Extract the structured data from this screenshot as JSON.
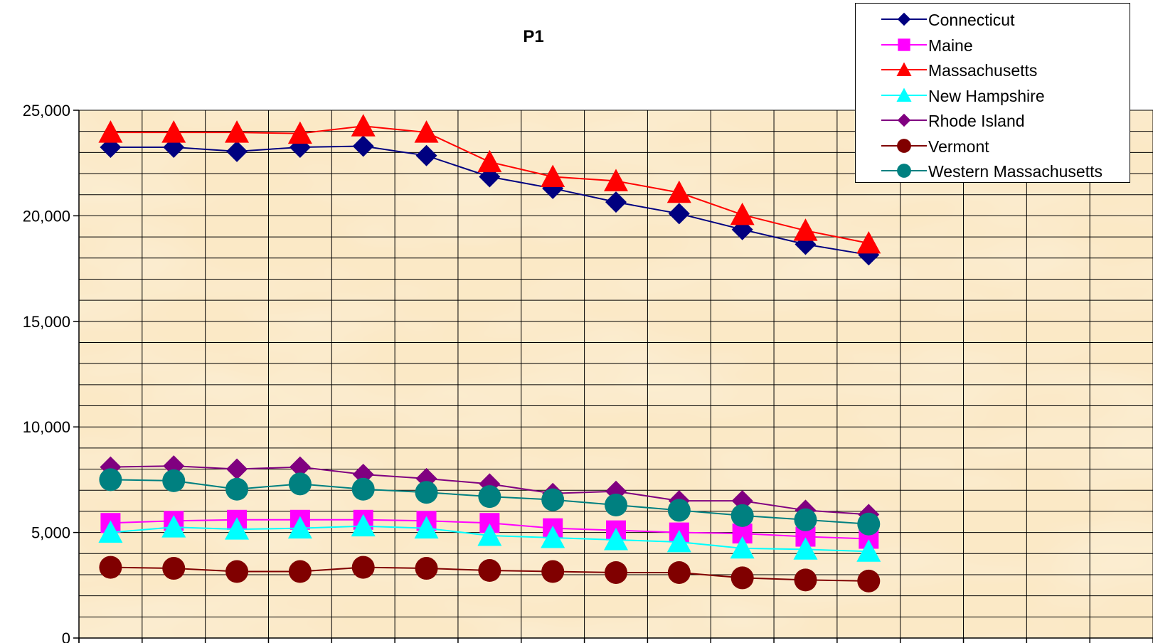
{
  "chart_data": {
    "type": "line",
    "title": "P1",
    "xlabel": "",
    "ylabel": "",
    "ylim": [
      0,
      25000
    ],
    "yticks": [
      "0",
      "5,000",
      "10,000",
      "15,000",
      "20,000",
      "25,000"
    ],
    "ytick_values": [
      0,
      5000,
      10000,
      15000,
      20000,
      25000
    ],
    "x_categories": 17,
    "grid": true,
    "legend_position": "top-right",
    "series": [
      {
        "name": "Connecticut",
        "color": "#000080",
        "marker": "diamond",
        "values": [
          23250,
          23250,
          23050,
          23250,
          23300,
          22850,
          21850,
          21300,
          20650,
          20100,
          19350,
          18650,
          18150
        ]
      },
      {
        "name": "Maine",
        "color": "#FF00FF",
        "marker": "square",
        "values": [
          5450,
          5550,
          5600,
          5600,
          5600,
          5550,
          5450,
          5200,
          5100,
          5000,
          4950,
          4800,
          4700
        ]
      },
      {
        "name": "Massachusetts",
        "color": "#FF0000",
        "marker": "triangle",
        "values": [
          23950,
          23950,
          23950,
          23900,
          24250,
          23950,
          22550,
          21850,
          21650,
          21100,
          20050,
          19300,
          18700
        ]
      },
      {
        "name": "New Hampshire",
        "color": "#00FFFF",
        "marker": "triangle",
        "values": [
          5000,
          5250,
          5150,
          5200,
          5300,
          5200,
          4850,
          4750,
          4650,
          4550,
          4250,
          4200,
          4100
        ]
      },
      {
        "name": "Rhode Island",
        "color": "#800080",
        "marker": "diamond",
        "values": [
          8100,
          8150,
          8000,
          8100,
          7750,
          7550,
          7300,
          6850,
          6950,
          6500,
          6500,
          6050,
          5850
        ]
      },
      {
        "name": "Vermont",
        "color": "#800000",
        "marker": "circle",
        "values": [
          3350,
          3300,
          3150,
          3150,
          3350,
          3300,
          3200,
          3150,
          3100,
          3100,
          2850,
          2750,
          2700
        ]
      },
      {
        "name": "Western Massachusetts",
        "color": "#008080",
        "marker": "circle",
        "values": [
          7500,
          7450,
          7050,
          7300,
          7050,
          6900,
          6700,
          6550,
          6300,
          6050,
          5800,
          5600,
          5400
        ]
      }
    ]
  }
}
